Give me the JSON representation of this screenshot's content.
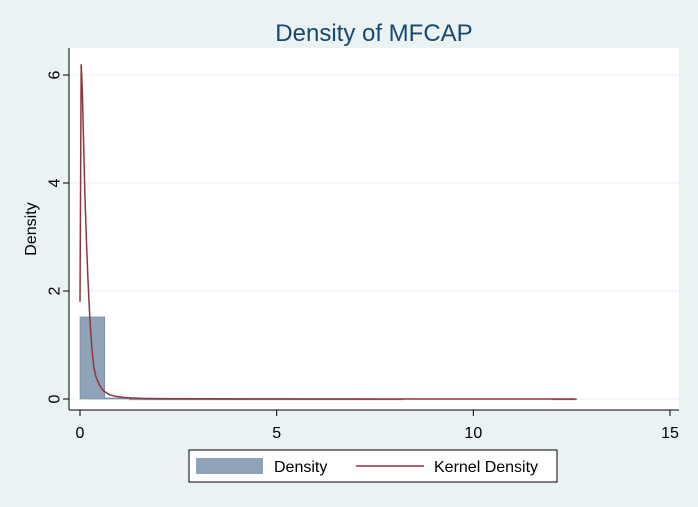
{
  "chart_data": {
    "type": "histogram+line",
    "title": "Density of MFCAP",
    "xlabel": "",
    "ylabel": "Density",
    "xlim": [
      0,
      15
    ],
    "ylim": [
      0,
      6.5
    ],
    "xticks": [
      0,
      5,
      10,
      15
    ],
    "yticks": [
      0,
      2,
      4,
      6
    ],
    "grid": "horizontal",
    "legend_position": "bottom",
    "legend": [
      "Density",
      "Kernel Density"
    ],
    "histogram": {
      "name": "Density",
      "color": "#8fa3b8",
      "bins": [
        {
          "x0": 0.0,
          "x1": 0.63,
          "value": 1.52
        },
        {
          "x0": 0.63,
          "x1": 1.26,
          "value": 0.02
        },
        {
          "x0": 1.26,
          "x1": 8.2,
          "value": 0.003
        },
        {
          "x0": 12.0,
          "x1": 12.63,
          "value": 0.003
        }
      ]
    },
    "kde": {
      "name": "Kernel Density",
      "color": "#90353b",
      "x": [
        0.0,
        0.03,
        0.06,
        0.09,
        0.12,
        0.16,
        0.2,
        0.25,
        0.3,
        0.35,
        0.4,
        0.5,
        0.6,
        0.75,
        0.9,
        1.1,
        1.3,
        1.6,
        2.0,
        3.0,
        5.0,
        8.0,
        12.0,
        12.6
      ],
      "y": [
        1.8,
        6.2,
        5.7,
        4.8,
        3.9,
        3.0,
        2.25,
        1.5,
        0.95,
        0.6,
        0.42,
        0.25,
        0.15,
        0.08,
        0.05,
        0.03,
        0.02,
        0.012,
        0.008,
        0.004,
        0.002,
        0.001,
        0.001,
        0.0
      ]
    }
  }
}
